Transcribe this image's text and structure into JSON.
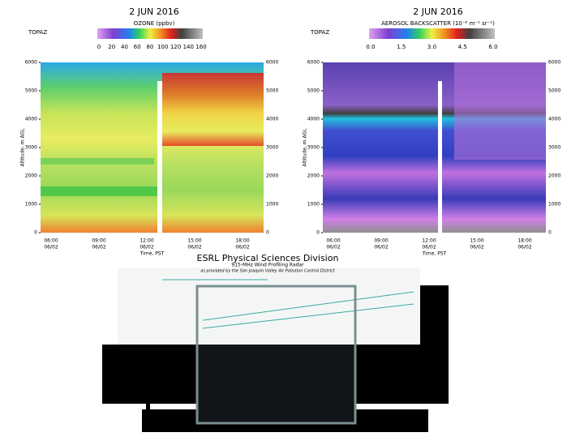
{
  "plots": [
    {
      "date": "2 JUN 2016",
      "colorbar_title": "OZONE (ppbv)",
      "site": "TOPAZ",
      "colorbar_ticks": [
        "0",
        "20",
        "40",
        "60",
        "80",
        "100",
        "120",
        "140",
        "160"
      ],
      "y_label": "Altitude, m AGL",
      "yticks": [
        0,
        1000,
        2000,
        3000,
        4000,
        5000,
        6000
      ],
      "xticks": [
        [
          "06:00",
          "06/02"
        ],
        [
          "09:00",
          "06/02"
        ],
        [
          "12:00",
          "06/02"
        ],
        [
          "15:00",
          "06/02"
        ],
        [
          "18:00",
          "06/02"
        ]
      ],
      "x_label": "Time, PST"
    },
    {
      "date": "2 JUN 2016",
      "colorbar_title": "AEROSOL BACKSCATTER (10⁻⁶ m⁻¹ sr⁻¹)",
      "site": "TOPAZ",
      "colorbar_ticks": [
        "0.0",
        "1.5",
        "3.0",
        "4.5",
        "6.0"
      ],
      "y_label": "Altitude, m AGL",
      "yticks": [
        0,
        1000,
        2000,
        3000,
        4000,
        5000,
        6000
      ],
      "xticks": [
        [
          "06:00",
          "06/02"
        ],
        [
          "09:00",
          "06/02"
        ],
        [
          "12:00",
          "06/02"
        ],
        [
          "15:00",
          "06/02"
        ],
        [
          "18:00",
          "06/02"
        ]
      ],
      "x_label": "Time, PST"
    }
  ],
  "profiler": {
    "title": "ESRL Physical Sciences Division",
    "subtitle": "915-MHz Wind Profiling Radar",
    "note": "as provided by the San Joaquin Valley Air Pollution Control District"
  }
}
